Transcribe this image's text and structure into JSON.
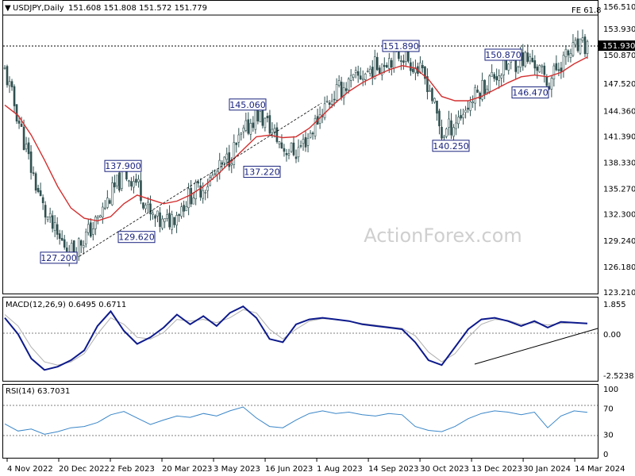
{
  "header": {
    "title": "USDJPY,Daily",
    "ohlc": "151.608 151.808 151.572 151.779",
    "fe_label": "FE 61.8",
    "last_price": "151.930"
  },
  "watermark": "ActionForex.com",
  "colors": {
    "candles": "#2f4f4f",
    "ma": "#d32f2f",
    "macd": "#0d1a8c",
    "signal": "#b0b0b0",
    "rsi": "#3a86c8",
    "annotation_border": "#1a237e",
    "trendline": "#000000"
  },
  "x_labels": [
    "4 Nov 2022",
    "20 Dec 2022",
    "2 Feb 2023",
    "20 Mar 2023",
    "3 May 2023",
    "16 Jun 2023",
    "1 Aug 2023",
    "14 Sep 2023",
    "30 Oct 2023",
    "13 Dec 2023",
    "30 Jan 2024",
    "14 Mar 2024"
  ],
  "price_ticks": [
    "156.510",
    "153.930",
    "150.870",
    "147.520",
    "144.360",
    "141.390",
    "138.330",
    "135.270",
    "132.300",
    "129.240",
    "126.180",
    "123.210"
  ],
  "macd_ticks": [
    "1.855",
    "0.00",
    "-2.5238"
  ],
  "rsi_ticks": [
    "100",
    "70",
    "30",
    "0"
  ],
  "annotations": [
    {
      "label": "127.200",
      "value": 127.2
    },
    {
      "label": "137.900",
      "value": 137.9
    },
    {
      "label": "129.620",
      "value": 129.62
    },
    {
      "label": "145.060",
      "value": 145.06
    },
    {
      "label": "137.220",
      "value": 137.22
    },
    {
      "label": "151.890",
      "value": 151.89
    },
    {
      "label": "140.250",
      "value": 140.25
    },
    {
      "label": "150.870",
      "value": 150.87
    },
    {
      "label": "146.470",
      "value": 146.47
    }
  ],
  "macd_label": "MACD(12,26,9) 0.6495 0.6711",
  "rsi_label": "RSI(14) 63.7031",
  "chart_data": [
    {
      "type": "candlestick",
      "title": "USDJPY,Daily",
      "ylim": [
        123.21,
        156.51
      ],
      "x": [
        "4 Nov 2022",
        "20 Dec 2022",
        "2 Feb 2023",
        "20 Mar 2023",
        "3 May 2023",
        "16 Jun 2023",
        "1 Aug 2023",
        "14 Sep 2023",
        "30 Oct 2023",
        "13 Dec 2023",
        "30 Jan 2024",
        "14 Mar 2024"
      ],
      "close_path": [
        149.0,
        143.5,
        137.5,
        132.5,
        129.5,
        128.0,
        129.5,
        131.5,
        134.5,
        137.0,
        136.0,
        132.0,
        131.0,
        132.5,
        134.5,
        135.5,
        137.0,
        139.0,
        141.5,
        144.0,
        142.5,
        140.0,
        139.5,
        141.5,
        144.5,
        146.5,
        147.5,
        148.5,
        149.5,
        150.5,
        151.0,
        149.5,
        147.5,
        141.5,
        143.0,
        145.0,
        147.0,
        148.5,
        149.5,
        150.5,
        150.0,
        147.5,
        150.0,
        151.5,
        151.8
      ],
      "moving_average": [
        145.0,
        143.8,
        141.5,
        138.6,
        135.5,
        133.0,
        131.8,
        131.5,
        132.0,
        133.5,
        134.5,
        134.0,
        133.5,
        133.8,
        134.5,
        135.5,
        136.8,
        138.3,
        139.8,
        141.3,
        141.5,
        141.2,
        141.3,
        142.3,
        143.8,
        145.3,
        146.6,
        147.6,
        148.4,
        149.1,
        149.6,
        149.3,
        148.0,
        146.0,
        145.5,
        145.5,
        146.0,
        146.8,
        147.6,
        148.3,
        148.5,
        148.3,
        148.8,
        149.8,
        150.6
      ],
      "levels": [
        {
          "label": "FE 61.8",
          "value": 155.2
        },
        {
          "label": "151.930",
          "value": 151.93
        }
      ]
    },
    {
      "type": "line",
      "title": "MACD(12,26,9) 0.6495 0.6711",
      "ylim": [
        -2.5238,
        1.855
      ],
      "series": [
        {
          "name": "MACD",
          "values": [
            1.0,
            0.0,
            -1.5,
            -2.2,
            -2.0,
            -1.6,
            -1.0,
            0.5,
            1.4,
            0.2,
            -0.6,
            -0.2,
            0.4,
            1.2,
            0.6,
            1.1,
            0.5,
            1.3,
            1.7,
            1.0,
            -0.3,
            -0.5,
            0.6,
            0.9,
            1.0,
            0.9,
            0.8,
            0.6,
            0.5,
            0.4,
            0.3,
            -0.5,
            -1.6,
            -1.9,
            -0.8,
            0.3,
            0.9,
            1.0,
            0.8,
            0.5,
            0.8,
            0.4,
            0.75,
            0.7,
            0.65
          ]
        },
        {
          "name": "Signal",
          "values": [
            1.2,
            0.5,
            -0.8,
            -1.7,
            -1.9,
            -1.7,
            -1.2,
            0.0,
            1.0,
            0.6,
            -0.2,
            -0.3,
            0.1,
            0.9,
            0.8,
            0.9,
            0.7,
            1.0,
            1.5,
            1.3,
            0.3,
            -0.3,
            0.3,
            0.8,
            0.95,
            0.9,
            0.8,
            0.65,
            0.55,
            0.45,
            0.35,
            -0.1,
            -1.1,
            -1.7,
            -1.2,
            -0.2,
            0.6,
            0.9,
            0.85,
            0.6,
            0.7,
            0.55,
            0.65,
            0.7,
            0.67
          ]
        }
      ]
    },
    {
      "type": "line",
      "title": "RSI(14) 63.7031",
      "ylim": [
        0,
        100
      ],
      "series": [
        {
          "name": "RSI(14)",
          "values": [
            46,
            35,
            38,
            30,
            34,
            40,
            42,
            48,
            60,
            65,
            55,
            45,
            52,
            58,
            56,
            62,
            58,
            66,
            72,
            55,
            42,
            40,
            52,
            62,
            66,
            62,
            64,
            60,
            58,
            62,
            60,
            42,
            36,
            34,
            42,
            54,
            62,
            66,
            64,
            60,
            64,
            40,
            58,
            66,
            63.7
          ]
        }
      ]
    }
  ]
}
